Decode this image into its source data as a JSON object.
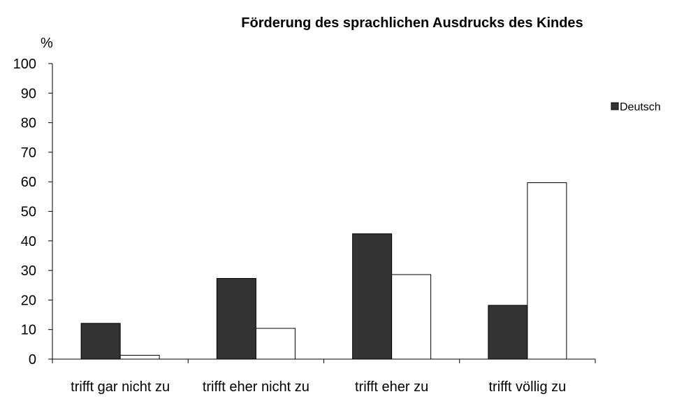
{
  "chart_data": {
    "type": "bar",
    "title": "Förderung des sprachlichen Ausdrucks des Kindes",
    "y_label": "%",
    "categories": [
      "trifft gar nicht zu",
      "trifft eher nicht zu",
      "trifft eher zu",
      "trifft völlig zu"
    ],
    "series": [
      {
        "name": "Deutsch",
        "color": "#333333",
        "values": [
          12.1,
          27.3,
          42.4,
          18.2
        ]
      },
      {
        "color": "#ffffff",
        "values": [
          1.3,
          10.4,
          28.6,
          59.7
        ]
      }
    ],
    "ylim": [
      0,
      100
    ],
    "yticks": [
      0,
      10,
      20,
      30,
      40,
      50,
      60,
      70,
      80,
      90,
      100
    ],
    "grid": false,
    "legend": "right"
  }
}
